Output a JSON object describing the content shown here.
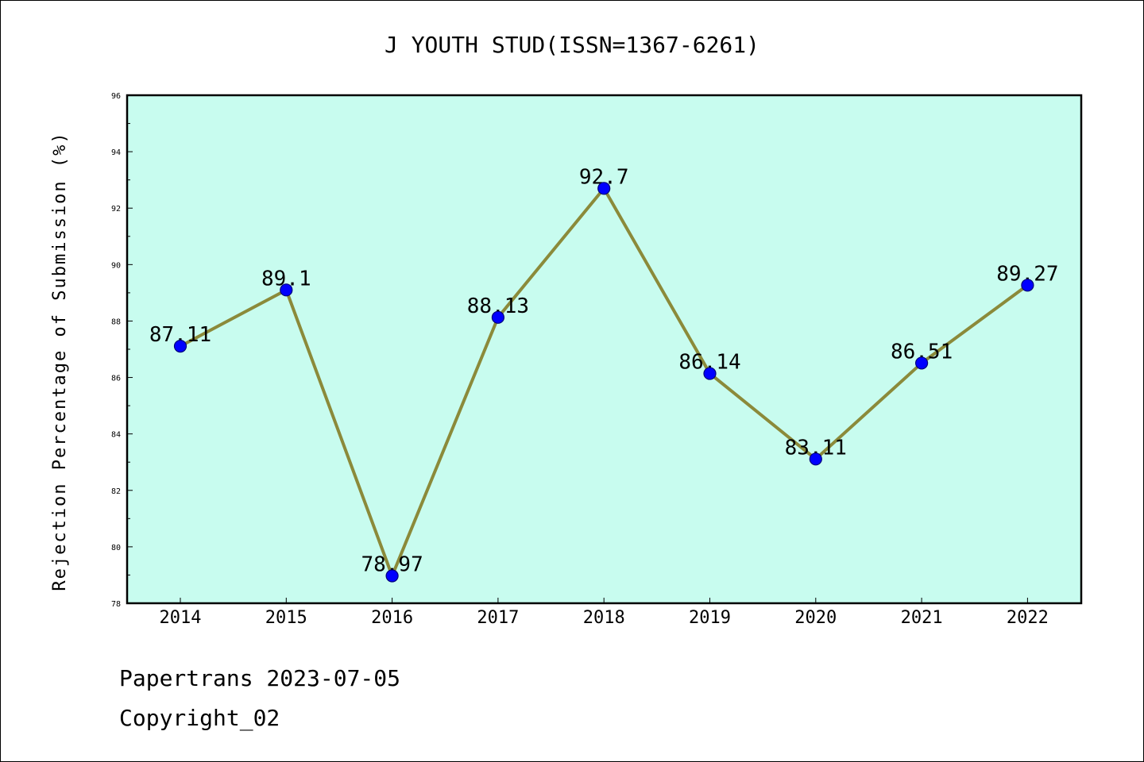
{
  "chart_data": {
    "type": "line",
    "title": "J YOUTH STUD(ISSN=1367-6261)",
    "xlabel": "",
    "ylabel": "Rejection Percentage of Submission (%)",
    "categories": [
      "2014",
      "2015",
      "2016",
      "2017",
      "2018",
      "2019",
      "2020",
      "2021",
      "2022"
    ],
    "series": [
      {
        "values": [
          87.11,
          89.1,
          78.97,
          88.13,
          92.7,
          86.14,
          83.11,
          86.51,
          89.27
        ]
      }
    ],
    "data_labels": [
      "87.11",
      "89.1",
      "78.97",
      "88.13",
      "92.7",
      "86.14",
      "83.11",
      "86.51",
      "89.27"
    ],
    "ylim": [
      78,
      96
    ],
    "yticks": [
      "78",
      "80",
      "82",
      "84",
      "86",
      "88",
      "90",
      "92",
      "94",
      "96"
    ],
    "grid": false,
    "legend": "none",
    "colors": {
      "plot_background": "#c8fcef",
      "line": "#8b8a3a",
      "marker": "#0000ff",
      "marker_edge": "#00007a"
    }
  },
  "footer": {
    "line1": "Papertrans 2023-07-05",
    "line2": "Copyright_02"
  }
}
